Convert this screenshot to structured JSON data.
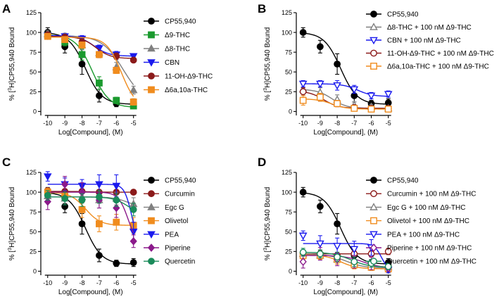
{
  "figure": {
    "panels": [
      "A",
      "B",
      "C",
      "D"
    ]
  },
  "chart_data": [
    {
      "panel": "A",
      "type": "scatter",
      "xlabel": "Log[Compound], (M)",
      "ylabel_prefix": "% [",
      "ylabel_sup": "3",
      "ylabel_suffix": "H]CP55,940 Bound",
      "xlim": [
        -10.4,
        -4.7
      ],
      "ylim": [
        -5,
        125
      ],
      "xticks": [
        -10,
        -9,
        -8,
        -7,
        -6,
        -5
      ],
      "yticks": [
        0,
        25,
        50,
        75,
        100,
        125
      ],
      "series": [
        {
          "name": "CP55,940",
          "color": "#000000",
          "marker": "circle",
          "filled": true,
          "x": [
            -10,
            -9,
            -8,
            -7,
            -6,
            -5
          ],
          "y": [
            100,
            82,
            60,
            20,
            10,
            11
          ],
          "err": [
            6,
            8,
            13,
            8,
            4,
            5
          ],
          "fit": {
            "top": 100,
            "bottom": 9,
            "logec50": -7.8,
            "hill": 0.9
          }
        },
        {
          "name": "Δ9-THC",
          "color": "#1a9a2e",
          "marker": "square",
          "filled": true,
          "x": [
            -10,
            -9,
            -8,
            -7,
            -6,
            -5
          ],
          "y": [
            96,
            88,
            72,
            36,
            14,
            7
          ],
          "err": [
            4,
            5,
            7,
            8,
            4,
            3
          ],
          "fit": {
            "top": 97,
            "bottom": 5,
            "logec50": -7.4,
            "hill": 0.9
          }
        },
        {
          "name": "Δ8-THC",
          "color": "#808080",
          "marker": "triangle-up",
          "filled": true,
          "x": [
            -10,
            -9,
            -8,
            -7,
            -6,
            -5
          ],
          "y": [
            98,
            95,
            84,
            74,
            56,
            27
          ],
          "err": [
            4,
            4,
            6,
            6,
            6,
            5
          ],
          "fit": {
            "top": 96,
            "bottom": 10,
            "logec50": -5.6,
            "hill": 0.7
          }
        },
        {
          "name": "CBN",
          "color": "#1a1aee",
          "marker": "triangle-down",
          "filled": true,
          "x": [
            -10,
            -9,
            -8,
            -7,
            -6,
            -5
          ],
          "y": [
            96,
            95,
            92,
            80,
            72,
            70
          ],
          "err": [
            3,
            3,
            4,
            4,
            4,
            3
          ],
          "fit": {
            "top": 96,
            "bottom": 70,
            "logec50": -7.3,
            "hill": 1.0
          }
        },
        {
          "name": "11-OH-Δ9-THC",
          "color": "#8b1a1a",
          "marker": "circle",
          "filled": true,
          "x": [
            -10,
            -9,
            -8,
            -7,
            -6,
            -5
          ],
          "y": [
            97,
            94,
            88,
            72,
            70,
            65
          ],
          "err": [
            3,
            3,
            4,
            4,
            4,
            3
          ],
          "fit": {
            "top": 95,
            "bottom": 67,
            "logec50": -7.2,
            "hill": 1.0
          }
        },
        {
          "name": "Δ6a,10a-THC",
          "color": "#f08c1e",
          "marker": "square",
          "filled": true,
          "x": [
            -10,
            -9,
            -8,
            -7,
            -6,
            -5
          ],
          "y": [
            95,
            91,
            84,
            72,
            52,
            12
          ],
          "err": [
            3,
            3,
            4,
            4,
            4,
            4
          ],
          "fit": {
            "top": 94,
            "bottom": 4,
            "logec50": -5.7,
            "hill": 1.0
          }
        }
      ]
    },
    {
      "panel": "B",
      "type": "scatter",
      "xlabel": "Log[Compound], (M)",
      "ylabel_prefix": "% [",
      "ylabel_sup": "3",
      "ylabel_suffix": "H]CP55,940 Bound",
      "xlim": [
        -10.4,
        -4.7
      ],
      "ylim": [
        -5,
        125
      ],
      "xticks": [
        -10,
        -9,
        -8,
        -7,
        -6,
        -5
      ],
      "yticks": [
        0,
        25,
        50,
        75,
        100,
        125
      ],
      "series": [
        {
          "name": "CP55,940",
          "color": "#000000",
          "marker": "circle",
          "filled": true,
          "x": [
            -10,
            -9,
            -8,
            -7,
            -6,
            -5
          ],
          "y": [
            100,
            82,
            60,
            20,
            10,
            11
          ],
          "err": [
            6,
            8,
            13,
            8,
            4,
            5
          ],
          "fit": {
            "top": 100,
            "bottom": 9,
            "logec50": -7.8,
            "hill": 0.9
          }
        },
        {
          "name": "Δ8-THC + 100 nM Δ9-THC",
          "color": "#808080",
          "marker": "triangle-up",
          "filled": false,
          "x": [
            -10,
            -9,
            -8,
            -7,
            -6,
            -5
          ],
          "y": [
            28,
            24,
            15,
            8,
            6,
            4
          ],
          "err": [
            6,
            6,
            6,
            4,
            3,
            3
          ],
          "fit": {
            "top": 28,
            "bottom": 4,
            "logec50": -8.3,
            "hill": 1.0
          }
        },
        {
          "name": "CBN + 100 nM Δ9-THC",
          "color": "#1a1aee",
          "marker": "triangle-down",
          "filled": false,
          "x": [
            -10,
            -9,
            -8,
            -7,
            -6,
            -5
          ],
          "y": [
            35,
            35,
            33,
            28,
            20,
            22
          ],
          "err": [
            4,
            4,
            6,
            5,
            4,
            4
          ],
          "fit": {
            "top": 35,
            "bottom": 19,
            "logec50": -6.8,
            "hill": 1.0
          }
        },
        {
          "name": "11-OH-Δ9-THC + 100 nM Δ9-THC",
          "color": "#8b1a1a",
          "marker": "circle",
          "filled": false,
          "x": [
            -10,
            -9,
            -8,
            -7,
            -6,
            -5
          ],
          "y": [
            25,
            18,
            10,
            5,
            4,
            4
          ],
          "err": [
            5,
            5,
            4,
            3,
            3,
            3
          ],
          "fit": {
            "top": 26,
            "bottom": 4,
            "logec50": -8.8,
            "hill": 1.0
          }
        },
        {
          "name": "Δ6a,10a-THC + 100 nM Δ9-THC",
          "color": "#f08c1e",
          "marker": "square",
          "filled": false,
          "x": [
            -10,
            -9,
            -8,
            -7,
            -6,
            -5
          ],
          "y": [
            14,
            18,
            10,
            4,
            3,
            3
          ],
          "err": [
            6,
            5,
            4,
            3,
            3,
            3
          ],
          "fit": {
            "top": 16,
            "bottom": 3,
            "logec50": -8.3,
            "hill": 1.0
          }
        }
      ]
    },
    {
      "panel": "C",
      "type": "scatter",
      "xlabel": "Log[Compound], (M)",
      "ylabel_prefix": "% [",
      "ylabel_sup": "3",
      "ylabel_suffix": "H]CP55,940 Bound",
      "xlim": [
        -10.4,
        -4.7
      ],
      "ylim": [
        -5,
        125
      ],
      "xticks": [
        -10,
        -9,
        -8,
        -7,
        -6,
        -5
      ],
      "yticks": [
        0,
        25,
        50,
        75,
        100,
        125
      ],
      "series": [
        {
          "name": "CP55,940",
          "color": "#000000",
          "marker": "circle",
          "filled": true,
          "x": [
            -10,
            -9,
            -8,
            -7,
            -6,
            -5
          ],
          "y": [
            100,
            82,
            60,
            20,
            10,
            11
          ],
          "err": [
            6,
            8,
            13,
            8,
            4,
            5
          ],
          "fit": {
            "top": 100,
            "bottom": 9,
            "logec50": -7.8,
            "hill": 0.9
          }
        },
        {
          "name": "Curcumin",
          "color": "#8b1a1a",
          "marker": "circle",
          "filled": true,
          "x": [
            -10,
            -9,
            -8,
            -7,
            -6,
            -5
          ],
          "y": [
            102,
            101,
            101,
            100,
            100,
            100
          ],
          "err": [
            3,
            3,
            3,
            3,
            3,
            3
          ],
          "fit": {
            "top": 101,
            "bottom": 100,
            "logec50": -7.5,
            "hill": 1.0
          }
        },
        {
          "name": "Egc G",
          "color": "#808080",
          "marker": "triangle-up",
          "filled": true,
          "x": [
            -10,
            -9,
            -8,
            -7,
            -6,
            -5
          ],
          "y": [
            95,
            92,
            94,
            90,
            92,
            85
          ],
          "err": [
            6,
            6,
            8,
            10,
            8,
            8
          ],
          "fit": {
            "top": 94,
            "bottom": 80,
            "logec50": -5.3,
            "hill": 1.0
          }
        },
        {
          "name": "Olivetol",
          "color": "#f08c1e",
          "marker": "square",
          "filled": true,
          "x": [
            -10,
            -9,
            -8,
            -7,
            -6,
            -5
          ],
          "y": [
            100,
            96,
            78,
            60,
            62,
            58
          ],
          "err": [
            5,
            6,
            10,
            10,
            10,
            10
          ],
          "fit": {
            "top": 100,
            "bottom": 58,
            "logec50": -7.8,
            "hill": 1.0
          }
        },
        {
          "name": "PEA",
          "color": "#1a1aee",
          "marker": "triangle-down",
          "filled": true,
          "x": [
            -10,
            -9,
            -8,
            -7,
            -6,
            -5
          ],
          "y": [
            120,
            110,
            108,
            110,
            108,
            50
          ],
          "err": [
            6,
            8,
            8,
            12,
            14,
            12
          ],
          "fit": {
            "top": 110,
            "bottom": 30,
            "logec50": -5.1,
            "hill": 2.0
          }
        },
        {
          "name": "Piperine",
          "color": "#8b1a8b",
          "marker": "diamond",
          "filled": true,
          "x": [
            -10,
            -9,
            -8,
            -7,
            -6,
            -5
          ],
          "y": [
            88,
            110,
            100,
            90,
            80,
            38
          ],
          "err": [
            10,
            10,
            12,
            10,
            12,
            8
          ],
          "fit": {
            "top": 100,
            "bottom": 30,
            "logec50": -5.3,
            "hill": 1.5
          }
        },
        {
          "name": "Quercetin",
          "color": "#1a8b5a",
          "marker": "circle",
          "filled": true,
          "x": [
            -10,
            -9,
            -8,
            -7,
            -6,
            -5
          ],
          "y": [
            96,
            92,
            90,
            94,
            90,
            78
          ],
          "err": [
            6,
            8,
            8,
            8,
            8,
            8
          ],
          "fit": {
            "top": 94,
            "bottom": 70,
            "logec50": -5.3,
            "hill": 1.0
          }
        }
      ]
    },
    {
      "panel": "D",
      "type": "scatter",
      "xlabel": "Log[Compound], (M)",
      "ylabel_prefix": "% [",
      "ylabel_sup": "3",
      "ylabel_suffix": "H]CP55,940 Bound",
      "xlim": [
        -10.4,
        -4.7
      ],
      "ylim": [
        -5,
        125
      ],
      "xticks": [
        -10,
        -9,
        -8,
        -7,
        -6,
        -5
      ],
      "yticks": [
        0,
        25,
        50,
        75,
        100,
        125
      ],
      "series": [
        {
          "name": "CP55,940",
          "color": "#000000",
          "marker": "circle",
          "filled": true,
          "x": [
            -10,
            -9,
            -8,
            -7,
            -6,
            -5
          ],
          "y": [
            100,
            82,
            60,
            20,
            10,
            11
          ],
          "err": [
            6,
            8,
            13,
            8,
            4,
            5
          ],
          "fit": {
            "top": 100,
            "bottom": 9,
            "logec50": -7.8,
            "hill": 0.9
          }
        },
        {
          "name": "Curcumin + 100 nM Δ9-THC",
          "color": "#8b1a1a",
          "marker": "circle",
          "filled": false,
          "x": [
            -10,
            -9,
            -8,
            -7,
            -6,
            -5
          ],
          "y": [
            22,
            22,
            20,
            22,
            22,
            25
          ],
          "err": [
            4,
            4,
            4,
            4,
            4,
            4
          ],
          "fit": {
            "top": 22,
            "bottom": 22,
            "logec50": -7.5,
            "hill": 1.0
          }
        },
        {
          "name": "Egc G + 100 nM Δ9-THC",
          "color": "#808080",
          "marker": "triangle-up",
          "filled": false,
          "x": [
            -10,
            -9,
            -8,
            -7,
            -6,
            -5
          ],
          "y": [
            22,
            20,
            15,
            10,
            8,
            5
          ],
          "err": [
            5,
            5,
            6,
            5,
            4,
            4
          ],
          "fit": {
            "top": 22,
            "bottom": 4,
            "logec50": -7.5,
            "hill": 0.8
          }
        },
        {
          "name": "Olivetol + 100 nM Δ9-THC",
          "color": "#f08c1e",
          "marker": "square",
          "filled": false,
          "x": [
            -10,
            -9,
            -8,
            -7,
            -6,
            -5
          ],
          "y": [
            20,
            20,
            15,
            8,
            5,
            3
          ],
          "err": [
            5,
            5,
            6,
            5,
            4,
            3
          ],
          "fit": {
            "top": 21,
            "bottom": 3,
            "logec50": -7.8,
            "hill": 0.9
          }
        },
        {
          "name": "PEA + 100 nM Δ9-THC",
          "color": "#1a1aee",
          "marker": "triangle-down",
          "filled": false,
          "x": [
            -10,
            -9,
            -8,
            -7,
            -6,
            -5
          ],
          "y": [
            45,
            35,
            32,
            28,
            30,
            2
          ],
          "err": [
            6,
            10,
            10,
            10,
            10,
            4
          ],
          "fit": {
            "top": 35,
            "bottom": 0,
            "logec50": -5.4,
            "hill": 2.0
          }
        },
        {
          "name": "Piperine + 100 nM Δ9-THC",
          "color": "#8b1a8b",
          "marker": "diamond",
          "filled": false,
          "x": [
            -10,
            -9,
            -8,
            -7,
            -6,
            -5
          ],
          "y": [
            12,
            22,
            15,
            12,
            10,
            4
          ],
          "err": [
            8,
            8,
            8,
            8,
            8,
            4
          ],
          "fit": {
            "top": 20,
            "bottom": 4,
            "logec50": -6.5,
            "hill": 0.8
          }
        },
        {
          "name": "Quercetin + 100 nM Δ9-THC",
          "color": "#1a8b5a",
          "marker": "circle",
          "filled": false,
          "x": [
            -10,
            -9,
            -8,
            -7,
            -6,
            -5
          ],
          "y": [
            24,
            22,
            18,
            12,
            10,
            6
          ],
          "err": [
            5,
            5,
            6,
            6,
            5,
            4
          ],
          "fit": {
            "top": 24,
            "bottom": 5,
            "logec50": -7.2,
            "hill": 0.8
          }
        }
      ]
    }
  ]
}
